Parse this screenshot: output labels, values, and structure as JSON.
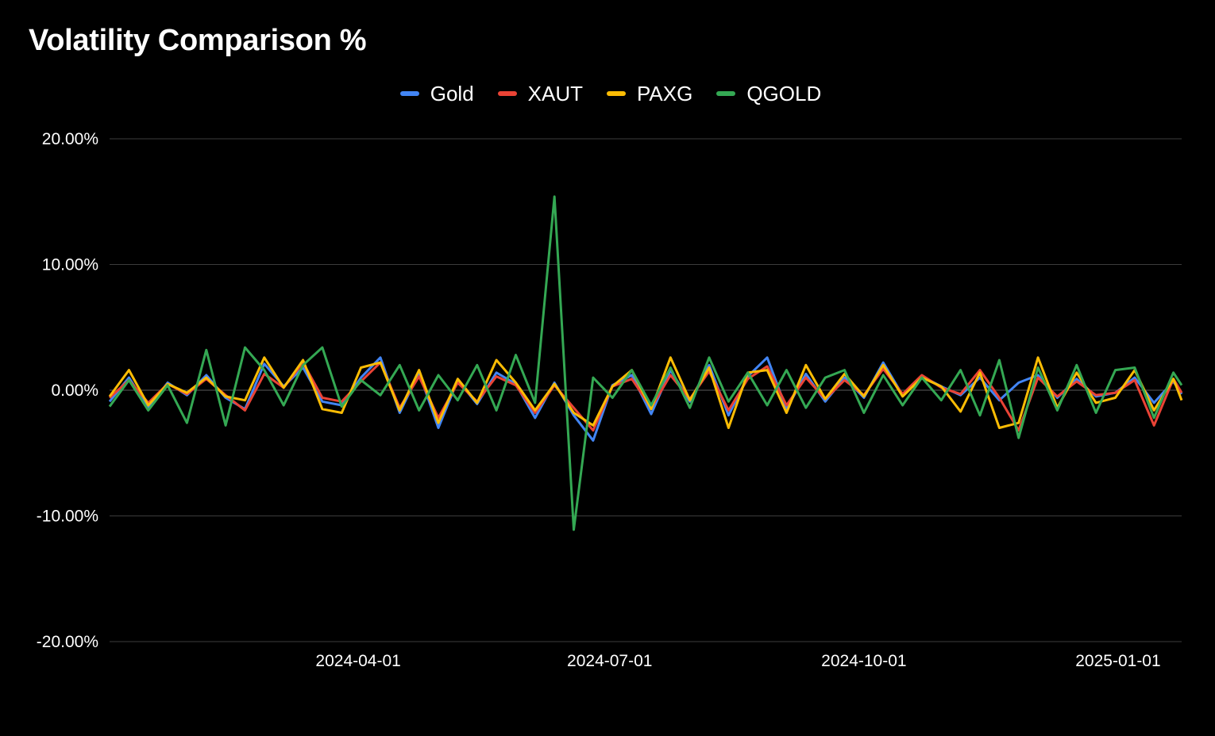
{
  "chart_data": {
    "type": "line",
    "title": "Volatility Comparison %",
    "xlabel": "",
    "ylabel": "",
    "ylim": [
      -20,
      20
    ],
    "y_ticks": [
      "20.00%",
      "10.00%",
      "0.00%",
      "-10.00%",
      "-20.00%"
    ],
    "y_tick_values": [
      20,
      10,
      0,
      -10,
      -20
    ],
    "x_ticks": [
      "2024-04-01",
      "2024-07-01",
      "2024-10-01",
      "2025-01-01"
    ],
    "x_range": [
      "2024-01-02",
      "2025-01-24"
    ],
    "legend_position": "top",
    "grid": true,
    "x": [
      "2024-01-02",
      "2024-01-09",
      "2024-01-16",
      "2024-01-23",
      "2024-01-30",
      "2024-02-06",
      "2024-02-13",
      "2024-02-20",
      "2024-02-27",
      "2024-03-05",
      "2024-03-12",
      "2024-03-19",
      "2024-03-26",
      "2024-04-02",
      "2024-04-09",
      "2024-04-16",
      "2024-04-23",
      "2024-04-30",
      "2024-05-07",
      "2024-05-14",
      "2024-05-21",
      "2024-05-28",
      "2024-06-04",
      "2024-06-11",
      "2024-06-18",
      "2024-06-25",
      "2024-07-02",
      "2024-07-09",
      "2024-07-16",
      "2024-07-23",
      "2024-07-30",
      "2024-08-06",
      "2024-08-13",
      "2024-08-20",
      "2024-08-27",
      "2024-09-03",
      "2024-09-10",
      "2024-09-17",
      "2024-09-24",
      "2024-10-01",
      "2024-10-08",
      "2024-10-15",
      "2024-10-22",
      "2024-10-29",
      "2024-11-05",
      "2024-11-12",
      "2024-11-19",
      "2024-11-26",
      "2024-12-03",
      "2024-12-10",
      "2024-12-17",
      "2024-12-24",
      "2024-12-31",
      "2025-01-07",
      "2025-01-14",
      "2025-01-21",
      "2025-01-24"
    ],
    "series": [
      {
        "name": "Gold",
        "color": "#4285f4",
        "values": [
          -0.9,
          1.0,
          -1.4,
          0.6,
          -0.4,
          1.2,
          -0.6,
          -1.5,
          2.1,
          0.3,
          1.8,
          -0.9,
          -1.2,
          1.0,
          2.6,
          -1.8,
          1.4,
          -3.0,
          0.8,
          -1.1,
          1.4,
          0.5,
          -2.2,
          0.6,
          -2.0,
          -4.0,
          0.4,
          1.2,
          -1.9,
          1.6,
          -0.9,
          2.0,
          -2.0,
          1.1,
          2.6,
          -1.5,
          1.3,
          -0.9,
          1.0,
          -0.6,
          2.2,
          -0.4,
          1.1,
          0.3,
          -0.4,
          1.0,
          -0.8,
          0.6,
          1.2,
          -0.6,
          0.9,
          -0.5,
          -0.2,
          1.0,
          -1.0,
          0.7,
          -0.3
        ]
      },
      {
        "name": "XAUT",
        "color": "#ea4335",
        "values": [
          -0.6,
          0.8,
          -1.0,
          0.5,
          -0.3,
          0.9,
          -0.4,
          -1.6,
          1.3,
          0.2,
          2.2,
          -0.6,
          -0.9,
          0.7,
          2.2,
          -1.4,
          1.1,
          -2.2,
          0.6,
          -0.9,
          1.1,
          0.4,
          -1.8,
          0.4,
          -1.4,
          -3.2,
          0.3,
          0.9,
          -1.4,
          1.2,
          -0.7,
          1.5,
          -1.6,
          0.9,
          1.9,
          -1.2,
          1.0,
          -0.7,
          0.8,
          -0.4,
          1.7,
          -0.3,
          1.2,
          0.2,
          -0.3,
          1.6,
          -0.6,
          -3.2,
          1.0,
          -0.5,
          0.7,
          -0.4,
          -0.2,
          0.8,
          -2.8,
          0.9,
          -0.2
        ]
      },
      {
        "name": "PAXG",
        "color": "#fbbc04",
        "values": [
          -0.5,
          1.6,
          -1.2,
          0.5,
          -0.2,
          1.0,
          -0.5,
          -0.8,
          2.6,
          0.2,
          2.4,
          -1.5,
          -1.8,
          1.8,
          2.2,
          -1.6,
          1.6,
          -2.6,
          0.9,
          -1.0,
          2.4,
          0.6,
          -1.6,
          0.5,
          -1.8,
          -2.8,
          0.3,
          1.6,
          -1.5,
          2.6,
          -0.8,
          1.8,
          -3.0,
          1.4,
          1.6,
          -1.8,
          2.0,
          -0.7,
          1.3,
          -0.5,
          2.0,
          -0.5,
          1.0,
          0.3,
          -1.7,
          1.4,
          -3.0,
          -2.6,
          2.6,
          -1.4,
          1.4,
          -1.0,
          -0.6,
          1.6,
          -1.6,
          0.9,
          -0.8
        ]
      },
      {
        "name": "QGOLD",
        "color": "#34a853",
        "values": [
          -1.3,
          0.8,
          -1.6,
          0.4,
          -2.6,
          3.2,
          -2.8,
          3.4,
          1.6,
          -1.2,
          2.0,
          3.4,
          -1.3,
          0.8,
          -0.4,
          2.0,
          -1.6,
          1.2,
          -0.8,
          2.0,
          -1.6,
          2.8,
          -1.0,
          15.4,
          -11.1,
          1.0,
          -0.6,
          1.6,
          -1.2,
          1.8,
          -1.4,
          2.6,
          -0.9,
          1.4,
          -1.2,
          1.6,
          -1.4,
          1.0,
          1.6,
          -1.8,
          1.2,
          -1.2,
          1.0,
          -0.8,
          1.6,
          -2.0,
          2.4,
          -3.8,
          1.8,
          -1.6,
          2.0,
          -1.8,
          1.6,
          1.8,
          -2.2,
          1.4,
          0.4
        ]
      }
    ]
  }
}
